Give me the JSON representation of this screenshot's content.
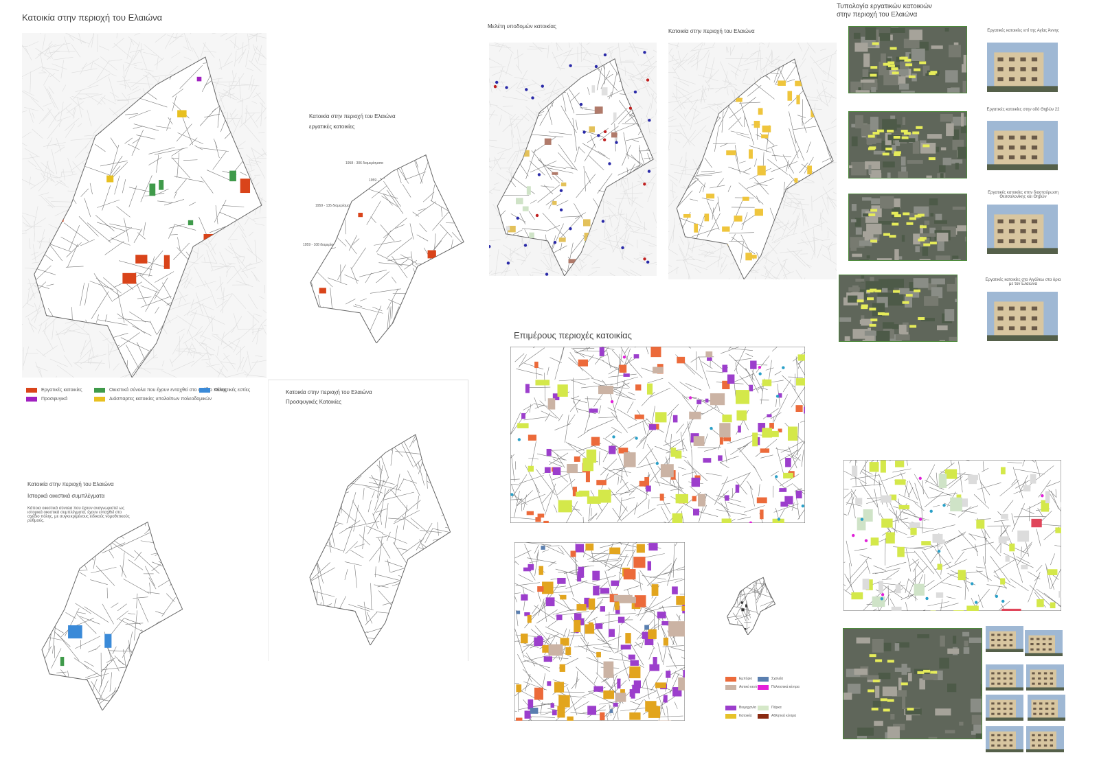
{
  "panels": {
    "housing_map": {
      "title": "Κατοικία στην περιοχή του Ελαιώνα",
      "legend": [
        "Εργατικές κατοικίες",
        "Προσφυγικά",
        "Οικιστικά σύνολα που έχουν ενταχθεί στο σχέδιο πόλης",
        "Διάσπαρτες κατοικίες υπολοίπων πολεοδομικών",
        "Φοιτητικές εστίες"
      ]
    },
    "workers_map": {
      "title": "Κατοικία στην περιοχή του Ελαιώνα",
      "subtitle": "εργατικές κατοικίες",
      "annotations": [
        "1958 - 306 διαμερίσματα",
        "1959 - 279 διαμερίσματα",
        "1959 - 135 διαμερίσματα",
        "1959 - 108 διαμερίσματα"
      ]
    },
    "infrastructure_map": {
      "title": "Μελέτη υποδομών κατοικίας"
    },
    "housing_map_2": {
      "title": "Κατοικία στην περιοχή του Ελαιώνα"
    },
    "typology": {
      "title": [
        "Τυπολογία εργατικών κατοικιών",
        "στην περιοχή του Ελαιώνα"
      ],
      "items": [
        "Εργατικές κατοικίες επί της Αγίας Άννης",
        "Εργατικές κατοικίες στην οδό Θηβών 22",
        "Εργατικές κατοικίες στην διασταύρωση Θεσσαλονίκης και Θηβών",
        "Εργατικές κατοικίες στο Αιγάλεω στα όρια με τον Ελαιώνα"
      ]
    },
    "sub_areas": {
      "title": "Επιμέρους περιοχές κατοικίας",
      "legend": [
        "Εμπόριο",
        "Σχολεία",
        "Αστικό κενό",
        "Πολιτιστικά κέντρα",
        "Βιομηχανία",
        "Πάρκα",
        "Κατοικία",
        "Αθλητικά κέντρα"
      ]
    },
    "refugee_map": {
      "title": "Κατοικία στην περιοχή του Ελαιώνα",
      "subtitle": "Προσφυγικές Κατοικίες"
    },
    "historic_map": {
      "title": "Κατοικία στην περιοχή του Ελαιώνα",
      "subtitle": "Ιστορικά οικιστικά συμπλέγματα",
      "description": "Κάποια οικιστικά σύνολα που έχουν αναγνωριστεί ως ιστορικά οικιστικά συμπλέγματα, έχουν ενταχθεί στο σχέδιο πόλης, με συγκεκριμένους ειδικούς νομοθετικούς ρυθμούς."
    }
  }
}
